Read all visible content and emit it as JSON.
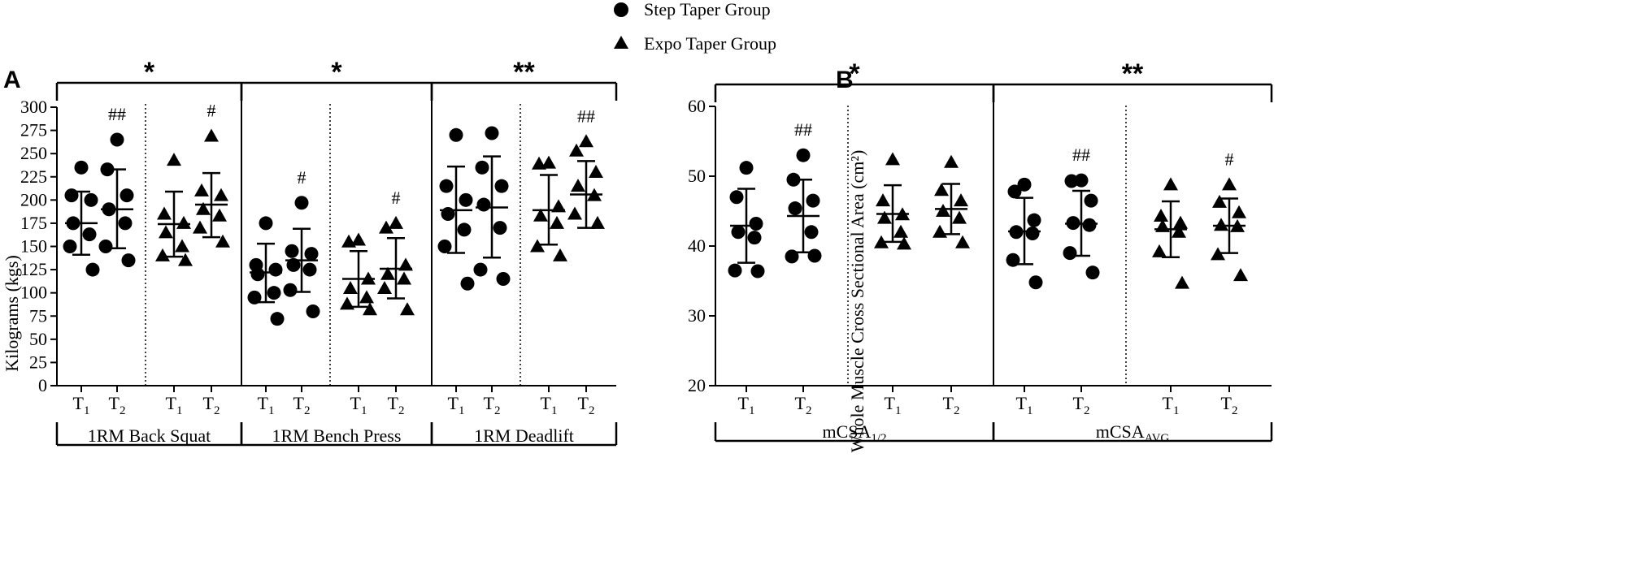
{
  "legend": [
    {
      "label": "Step Taper Group",
      "marker": "circle"
    },
    {
      "label": "Expo Taper Group",
      "marker": "triangle"
    }
  ],
  "panels": [
    {
      "letter": "A"
    },
    {
      "letter": "B"
    }
  ],
  "chart_data": [
    {
      "type": "scatter",
      "panel": "A",
      "ylabel": "Kilograms (kgs)",
      "ylim": [
        0,
        300
      ],
      "yticks": [
        "0",
        "25",
        "50",
        "75",
        "100",
        "125",
        "150",
        "175",
        "200",
        "225",
        "250",
        "275",
        "300"
      ],
      "groups": [
        {
          "label": "1RM Back Squat",
          "significance": "*",
          "columns": [
            {
              "x": "T1",
              "series": "Step Taper Group",
              "mean": 175,
              "sd_low": 141,
              "sd_high": 209,
              "annotation": "",
              "values": [
                235,
                205,
                200,
                175,
                163,
                150,
                125
              ]
            },
            {
              "x": "T2",
              "series": "Step Taper Group",
              "mean": 190,
              "sd_low": 148,
              "sd_high": 233,
              "annotation": "##",
              "values": [
                265,
                233,
                205,
                190,
                175,
                150,
                135
              ]
            },
            {
              "x": "T1",
              "series": "Expo Taper Group",
              "mean": 174,
              "sd_low": 139,
              "sd_high": 209,
              "annotation": "",
              "values": [
                243,
                185,
                175,
                165,
                150,
                140,
                135
              ]
            },
            {
              "x": "T2",
              "series": "Expo Taper Group",
              "mean": 195,
              "sd_low": 160,
              "sd_high": 229,
              "annotation": "#",
              "values": [
                269,
                210,
                205,
                190,
                183,
                170,
                155
              ]
            }
          ]
        },
        {
          "label": "1RM Bench Press",
          "significance": "*",
          "columns": [
            {
              "x": "T1",
              "series": "Step Taper Group",
              "mean": 122,
              "sd_low": 90,
              "sd_high": 153,
              "annotation": "",
              "values": [
                175,
                130,
                125,
                120,
                100,
                95,
                72
              ]
            },
            {
              "x": "T2",
              "series": "Step Taper Group",
              "mean": 135,
              "sd_low": 101,
              "sd_high": 169,
              "annotation": "#",
              "values": [
                197,
                145,
                142,
                130,
                125,
                103,
                80
              ]
            },
            {
              "x": "T1",
              "series": "Expo Taper Group",
              "mean": 115,
              "sd_low": 85,
              "sd_high": 145,
              "annotation": "",
              "values": [
                157,
                155,
                115,
                105,
                95,
                88,
                82
              ]
            },
            {
              "x": "T2",
              "series": "Expo Taper Group",
              "mean": 126,
              "sd_low": 94,
              "sd_high": 159,
              "annotation": "#",
              "values": [
                175,
                170,
                130,
                120,
                115,
                105,
                82
              ]
            }
          ]
        },
        {
          "label": "1RM Deadlift",
          "significance": "**",
          "columns": [
            {
              "x": "T1",
              "series": "Step Taper Group",
              "mean": 189,
              "sd_low": 143,
              "sd_high": 236,
              "annotation": "",
              "values": [
                270,
                215,
                200,
                185,
                168,
                150,
                110
              ]
            },
            {
              "x": "T2",
              "series": "Step Taper Group",
              "mean": 192,
              "sd_low": 138,
              "sd_high": 247,
              "annotation": "",
              "values": [
                272,
                235,
                215,
                195,
                170,
                125,
                115
              ]
            },
            {
              "x": "T1",
              "series": "Expo Taper Group",
              "mean": 189,
              "sd_low": 152,
              "sd_high": 227,
              "annotation": "",
              "values": [
                240,
                239,
                193,
                183,
                175,
                150,
                140
              ]
            },
            {
              "x": "T2",
              "series": "Expo Taper Group",
              "mean": 206,
              "sd_low": 170,
              "sd_high": 242,
              "annotation": "##",
              "values": [
                263,
                253,
                230,
                215,
                205,
                185,
                175
              ]
            }
          ]
        }
      ]
    },
    {
      "type": "scatter",
      "panel": "B",
      "ylabel": "Whole Muscle Cross Sectional Area (cm²)",
      "ylim": [
        20,
        60
      ],
      "yticks": [
        "20",
        "30",
        "40",
        "50",
        "60"
      ],
      "groups": [
        {
          "label": "mCSA1/2",
          "label_main": "mCSA",
          "label_sub": "1/2",
          "significance": "*",
          "columns": [
            {
              "x": "T1",
              "series": "Step Taper Group",
              "mean": 42.9,
              "sd_low": 37.6,
              "sd_high": 48.2,
              "annotation": "",
              "values": [
                51.2,
                47.0,
                43.2,
                42.0,
                41.2,
                36.5,
                36.4
              ]
            },
            {
              "x": "T2",
              "series": "Step Taper Group",
              "mean": 44.3,
              "sd_low": 39.1,
              "sd_high": 49.5,
              "annotation": "##",
              "values": [
                53.0,
                49.5,
                46.5,
                45.4,
                42.0,
                38.5,
                38.6
              ]
            },
            {
              "x": "T1",
              "series": "Expo Taper Group",
              "mean": 44.6,
              "sd_low": 40.6,
              "sd_high": 48.7,
              "annotation": "",
              "values": [
                52.4,
                46.5,
                44.5,
                44.0,
                42.0,
                40.5,
                40.3
              ]
            },
            {
              "x": "T2",
              "series": "Expo Taper Group",
              "mean": 45.3,
              "sd_low": 41.7,
              "sd_high": 48.9,
              "annotation": "",
              "values": [
                52.0,
                48.0,
                46.5,
                45.0,
                44.0,
                42.0,
                40.5
              ]
            }
          ]
        },
        {
          "label": "mCSAAVG",
          "label_main": "mCSA",
          "label_sub": "AVG",
          "significance": "**",
          "columns": [
            {
              "x": "T1",
              "series": "Step Taper Group",
              "mean": 42.1,
              "sd_low": 37.4,
              "sd_high": 46.9,
              "annotation": "",
              "values": [
                48.8,
                47.8,
                43.7,
                42.0,
                41.8,
                38.0,
                34.8
              ]
            },
            {
              "x": "T2",
              "series": "Step Taper Group",
              "mean": 43.2,
              "sd_low": 38.6,
              "sd_high": 47.9,
              "annotation": "##",
              "values": [
                49.4,
                49.3,
                46.5,
                43.3,
                43.0,
                39.0,
                36.2
              ]
            },
            {
              "x": "T1",
              "series": "Expo Taper Group",
              "mean": 42.4,
              "sd_low": 38.4,
              "sd_high": 46.4,
              "annotation": "",
              "values": [
                48.8,
                44.3,
                43.3,
                42.8,
                42.0,
                39.2,
                34.7
              ]
            },
            {
              "x": "T2",
              "series": "Expo Taper Group",
              "mean": 42.9,
              "sd_low": 39.0,
              "sd_high": 46.8,
              "annotation": "#",
              "values": [
                48.8,
                46.3,
                44.8,
                43.0,
                42.8,
                38.8,
                35.8
              ]
            }
          ]
        }
      ]
    }
  ]
}
